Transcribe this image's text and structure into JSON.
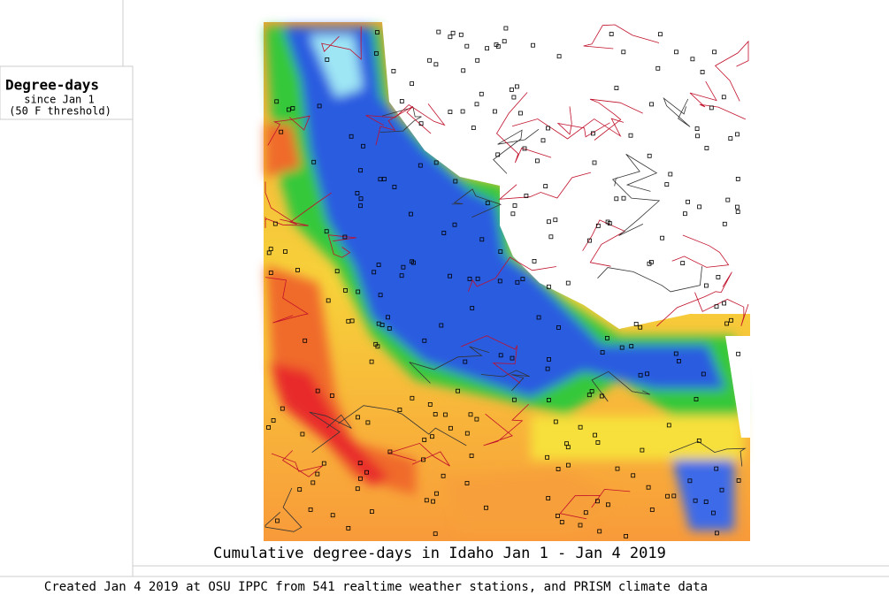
{
  "legend": {
    "title": "Degree-days",
    "subtitle": "since Jan 1",
    "note": "(50 F threshold)"
  },
  "map": {
    "caption": "Cumulative degree-days in Idaho  Jan 1 - Jan 4 2019"
  },
  "footer": {
    "credit": "Created Jan 4 2019 at OSU IPPC from 541 realtime weather stations, and PRISM climate data"
  }
}
